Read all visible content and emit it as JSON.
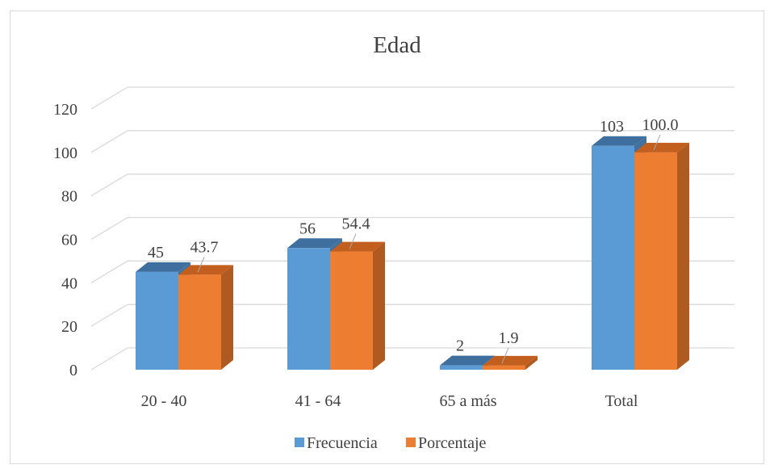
{
  "chart_data": {
    "type": "bar",
    "title": "Edad",
    "categories": [
      "20 - 40",
      "41 - 64",
      "65 a más",
      "Total"
    ],
    "series": [
      {
        "name": "Frecuencia",
        "values": [
          45,
          56,
          2,
          103
        ],
        "labels": [
          "45",
          "56",
          "2",
          "103"
        ],
        "color": "#5b9bd5"
      },
      {
        "name": "Porcentaje",
        "values": [
          43.7,
          54.4,
          1.9,
          100.0
        ],
        "labels": [
          "43.7",
          "54.4",
          "1.9",
          "100.0"
        ],
        "color": "#ed7d31"
      }
    ],
    "yticks": [
      "0",
      "20",
      "40",
      "60",
      "80",
      "100",
      "120"
    ],
    "ylim": [
      0,
      120
    ],
    "grid": true,
    "legend": "bottom",
    "style": "3d-clustered-column"
  }
}
